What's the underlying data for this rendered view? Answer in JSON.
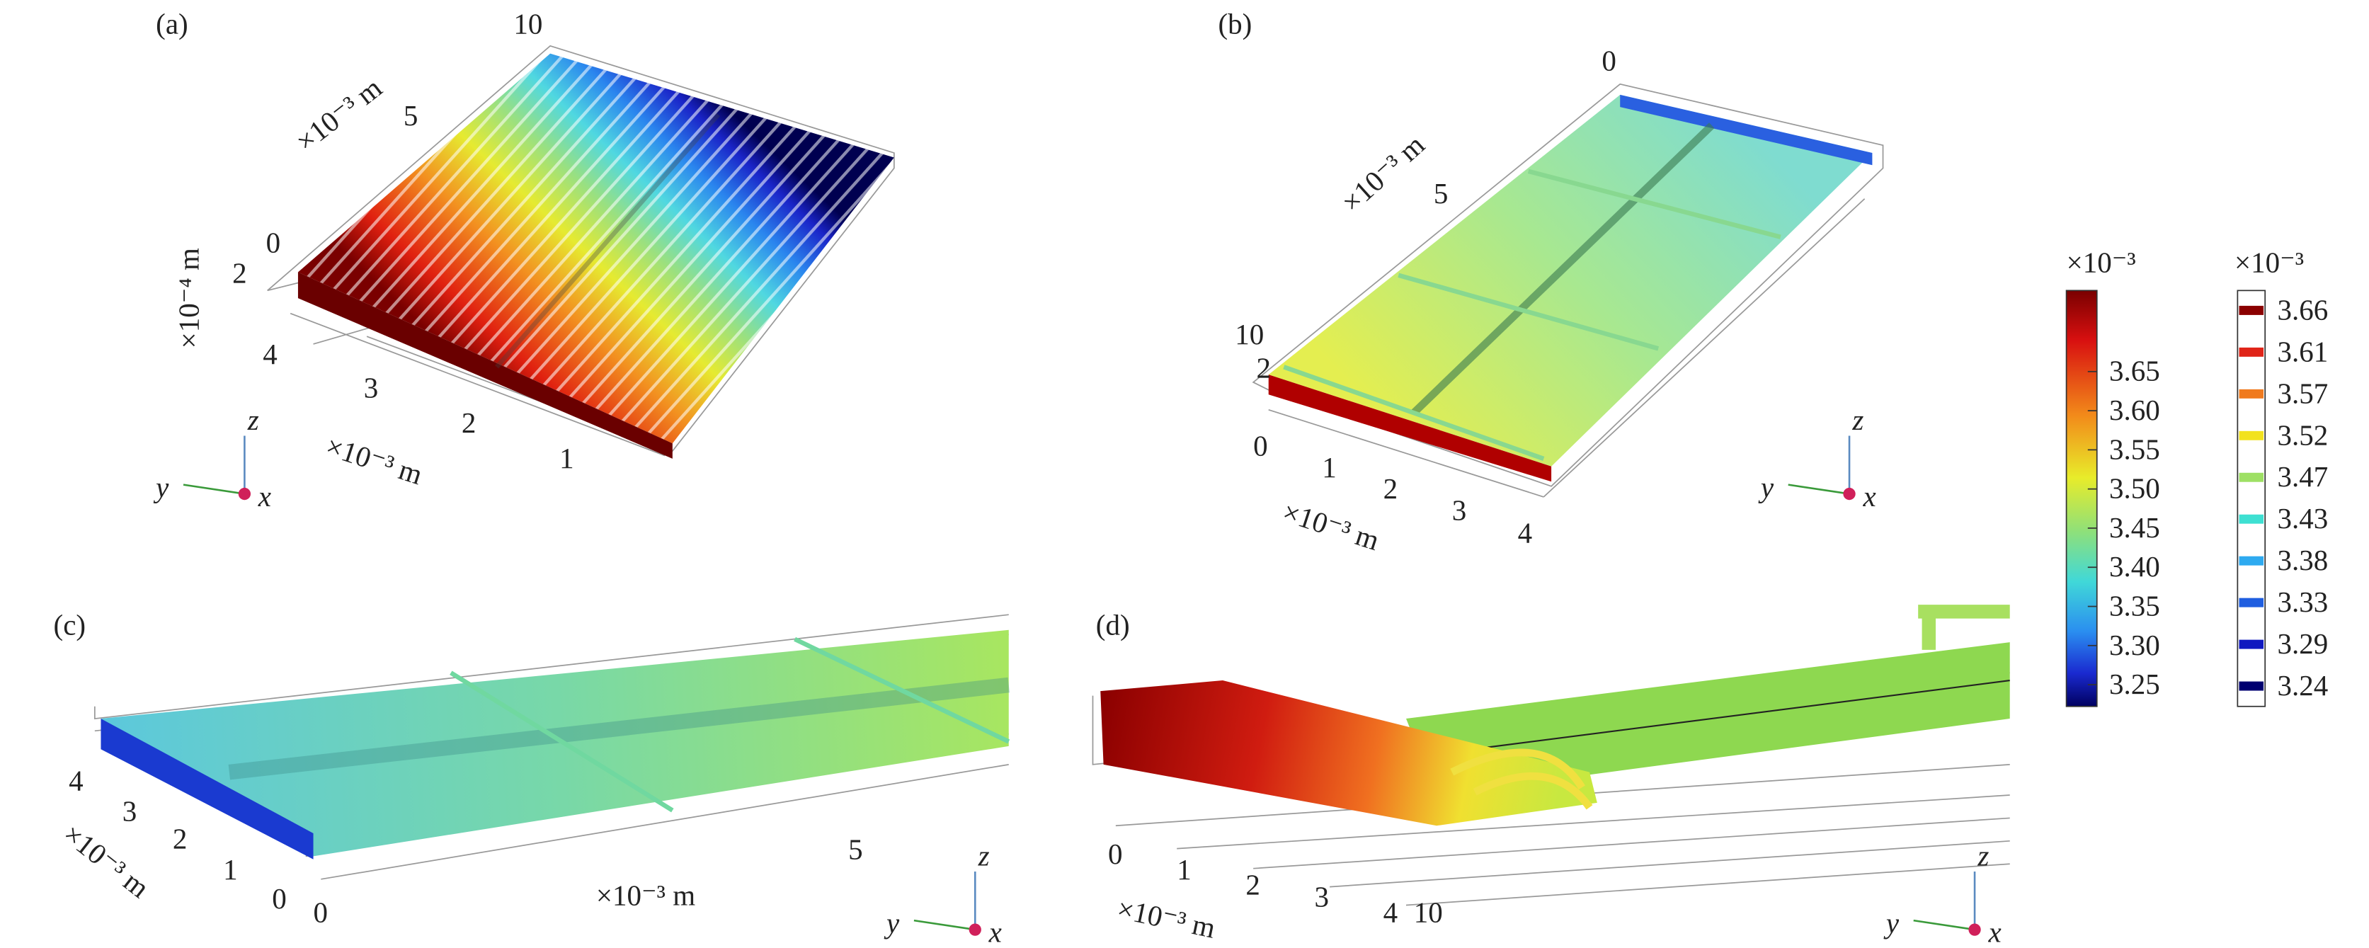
{
  "panels": [
    {
      "label": "(a)",
      "ticks": [
        "10",
        "5",
        "0",
        "2",
        "4",
        "3",
        "2",
        "1"
      ],
      "axis_labels": [
        "×10⁻³ m",
        "×10⁻⁴ m",
        "×10⁻³ m"
      ]
    },
    {
      "label": "(b)",
      "ticks": [
        "0",
        "5",
        "10",
        "2",
        "0",
        "1",
        "2",
        "3",
        "4"
      ],
      "axis_labels": [
        "×10⁻³ m",
        "×10⁻³ m"
      ]
    },
    {
      "label": "(c)",
      "ticks": [
        "4",
        "3",
        "2",
        "1",
        "0",
        "0",
        "5"
      ],
      "axis_labels": [
        "×10⁻³ m",
        "×10⁻³ m"
      ]
    },
    {
      "label": "(d)",
      "ticks": [
        "0",
        "1",
        "2",
        "3",
        "4",
        "10"
      ],
      "axis_labels": [
        "×10⁻³ m"
      ]
    }
  ],
  "triad": {
    "z": "z",
    "y": "y",
    "x": "x"
  },
  "colorbars": [
    {
      "exponent_label": "×10⁻³",
      "ticks": [
        "3.65",
        "3.60",
        "3.55",
        "3.50",
        "3.45",
        "3.40",
        "3.35",
        "3.30",
        "3.25"
      ]
    },
    {
      "exponent_label": "×10⁻³",
      "levels": [
        "3.66",
        "3.61",
        "3.57",
        "3.52",
        "3.47",
        "3.43",
        "3.38",
        "3.33",
        "3.29",
        "3.24"
      ],
      "colors": [
        "#8b0000",
        "#e02418",
        "#f07a1e",
        "#f2e21e",
        "#9ee064",
        "#3ee0d2",
        "#2eaaf0",
        "#1f5ee0",
        "#1018c0",
        "#000070"
      ]
    }
  ]
}
